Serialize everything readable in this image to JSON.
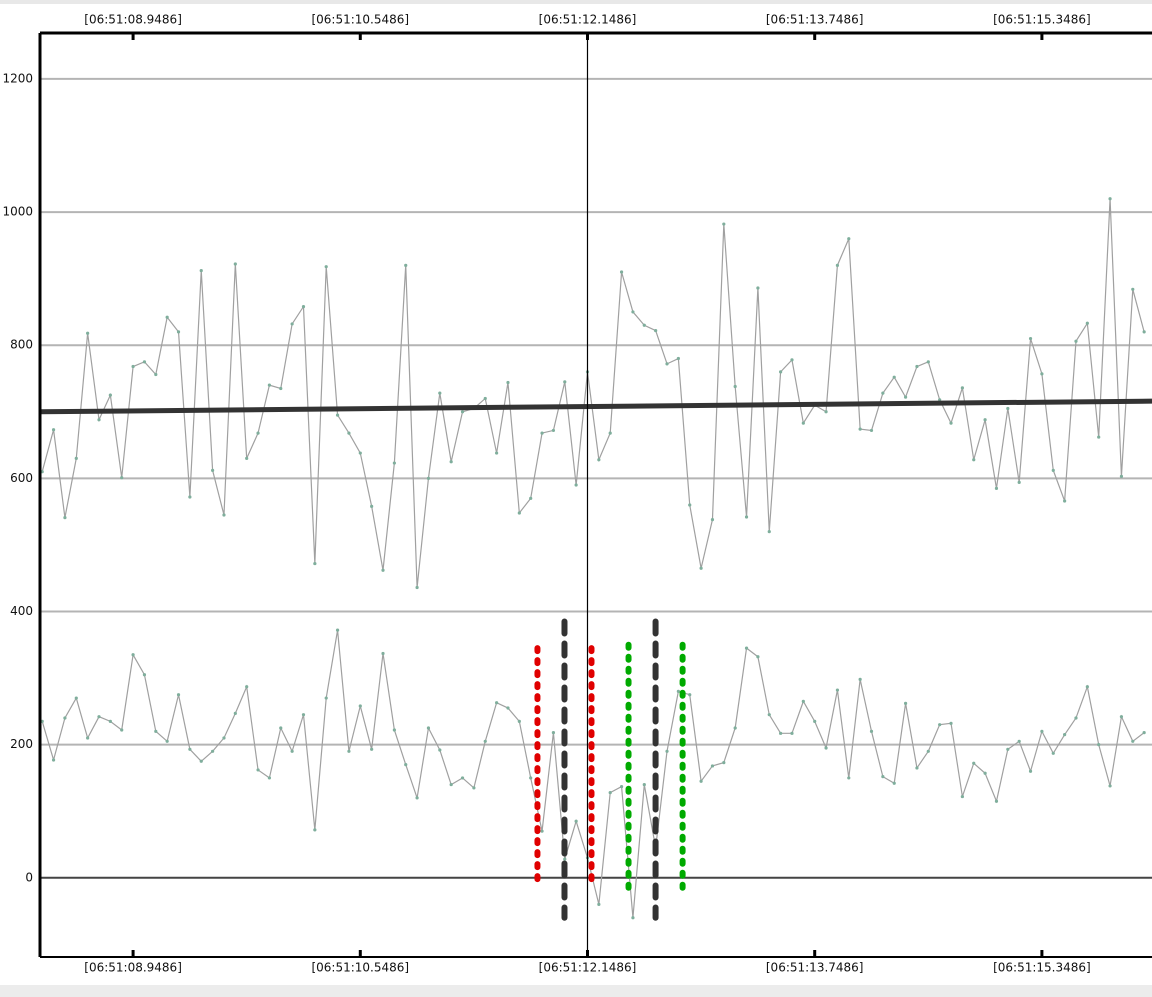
{
  "chart_data": {
    "type": "line",
    "xlim": [
      8.2931,
      16.1239
    ],
    "xticks": [
      {
        "value": 8.9486,
        "label": "[06:51:08.9486]"
      },
      {
        "value": 10.5486,
        "label": "[06:51:10.5486]"
      },
      {
        "value": 12.1486,
        "label": "[06:51:12.1486]"
      },
      {
        "value": 13.7486,
        "label": "[06:51:13.7486]"
      },
      {
        "value": 15.3486,
        "label": "[06:51:15.3486]"
      }
    ],
    "ylim": [
      -119,
      1269
    ],
    "yticks": [
      0,
      200,
      400,
      600,
      800,
      1000,
      1200
    ],
    "grid": true,
    "x": [
      8.3086,
      8.3886,
      8.4686,
      8.5486,
      8.6286,
      8.7086,
      8.7886,
      8.8686,
      8.9486,
      9.0286,
      9.1086,
      9.1886,
      9.2686,
      9.3486,
      9.4286,
      9.5086,
      9.5886,
      9.6686,
      9.7486,
      9.8286,
      9.9086,
      9.9886,
      10.0686,
      10.1486,
      10.2286,
      10.3086,
      10.3886,
      10.4686,
      10.5486,
      10.6286,
      10.7086,
      10.7886,
      10.8686,
      10.9486,
      11.0286,
      11.1086,
      11.1886,
      11.2686,
      11.3486,
      11.4286,
      11.5086,
      11.5886,
      11.6686,
      11.7486,
      11.8286,
      11.9086,
      11.9886,
      12.0686,
      12.1486,
      12.2286,
      12.3086,
      12.3886,
      12.4686,
      12.5486,
      12.6286,
      12.7086,
      12.7886,
      12.8686,
      12.9486,
      13.0286,
      13.1086,
      13.1886,
      13.2686,
      13.3486,
      13.4286,
      13.5086,
      13.5886,
      13.6686,
      13.7486,
      13.8286,
      13.9086,
      13.9886,
      14.0686,
      14.1486,
      14.2286,
      14.3086,
      14.3886,
      14.4686,
      14.5486,
      14.6286,
      14.7086,
      14.7886,
      14.8686,
      14.9486,
      15.0286,
      15.1086,
      15.1886,
      15.2686,
      15.3486,
      15.4286,
      15.5086,
      15.5886,
      15.6686,
      15.7486,
      15.8286,
      15.9086,
      15.9886,
      16.0686
    ],
    "series": [
      {
        "color": "#a0a0a0",
        "values": [
          610,
          673,
          541,
          630,
          818,
          688,
          725,
          601,
          768,
          775,
          756,
          842,
          820,
          572,
          912,
          612,
          545,
          922,
          630,
          668,
          740,
          735,
          832,
          858,
          472,
          918,
          695,
          668,
          638,
          558,
          462,
          623,
          920,
          436,
          600,
          728,
          625,
          700,
          705,
          720,
          638,
          744,
          548,
          570,
          668,
          672,
          745,
          590,
          760,
          628,
          668,
          910,
          850,
          830,
          822,
          772,
          780,
          560,
          465,
          538,
          982,
          738,
          542,
          886,
          520,
          760,
          778,
          683,
          710,
          700,
          920,
          960,
          674,
          672,
          728,
          752,
          722,
          768,
          775,
          718,
          683,
          736,
          628,
          688,
          585,
          705,
          594,
          810,
          757,
          612,
          566,
          806,
          833,
          662,
          1020,
          603,
          884,
          820
        ]
      },
      {
        "color": "#a0a0a0",
        "values": [
          235,
          177,
          240,
          270,
          210,
          242,
          235,
          222,
          335,
          305,
          220,
          205,
          275,
          193,
          175,
          190,
          210,
          247,
          287,
          162,
          150,
          225,
          190,
          245,
          72,
          270,
          372,
          190,
          258,
          193,
          337,
          222,
          170,
          120,
          225,
          192,
          140,
          150,
          135,
          205,
          263,
          255,
          235,
          150,
          70,
          218,
          28,
          85,
          30,
          -40,
          128,
          137,
          -60,
          140,
          45,
          190,
          280,
          275,
          145,
          168,
          173,
          225,
          345,
          332,
          245,
          217,
          217,
          265,
          235,
          195,
          282,
          150,
          298,
          220,
          152,
          142,
          262,
          165,
          190,
          230,
          232,
          122,
          172,
          157,
          115,
          193,
          205,
          160,
          220,
          187,
          215,
          240,
          287,
          200,
          138,
          242,
          205,
          218
        ]
      }
    ],
    "trend": {
      "color": "#333333",
      "x": [
        8.2931,
        16.1239
      ],
      "values": [
        700,
        716
      ]
    },
    "cursor": {
      "x": 12.1486,
      "color": "#000000"
    },
    "markers": [
      {
        "x": 11.7962,
        "y": [
          -15,
          345
        ],
        "color": "#e00000",
        "style": "dotted"
      },
      {
        "x": 11.9866,
        "y": [
          -60,
          385
        ],
        "color": "#333333",
        "style": "dashed"
      },
      {
        "x": 12.1768,
        "y": [
          -15,
          345
        ],
        "color": "#e00000",
        "style": "dotted"
      },
      {
        "x": 12.4377,
        "y": [
          -15,
          350
        ],
        "color": "#00aa00",
        "style": "dotted"
      },
      {
        "x": 12.628,
        "y": [
          -60,
          385
        ],
        "color": "#333333",
        "style": "dashed"
      },
      {
        "x": 12.8183,
        "y": [
          -15,
          350
        ],
        "color": "#00aa00",
        "style": "dotted"
      }
    ]
  }
}
